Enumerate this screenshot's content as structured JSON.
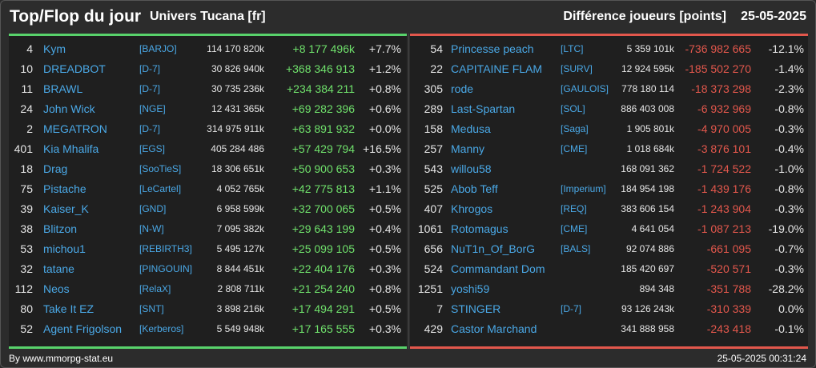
{
  "header": {
    "title": "Top/Flop du jour",
    "universe": "Univers Tucana [fr]",
    "metric": "Différence joueurs [points]",
    "date": "25-05-2025"
  },
  "colors": {
    "positive": "#6fe06b",
    "negative": "#e2574c",
    "link": "#4aa8e6"
  },
  "top": [
    {
      "rank": "4",
      "name": "Kym",
      "ally": "[BARJO]",
      "points": "114 170 820k",
      "delta": "+8 177 496k",
      "pct": "+7.7%"
    },
    {
      "rank": "10",
      "name": "DREADBOT",
      "ally": "[D-7]",
      "points": "30 826 940k",
      "delta": "+368 346 913",
      "pct": "+1.2%"
    },
    {
      "rank": "11",
      "name": "BRAWL",
      "ally": "[D-7]",
      "points": "30 735 236k",
      "delta": "+234 384 211",
      "pct": "+0.8%"
    },
    {
      "rank": "24",
      "name": "John Wick",
      "ally": "[NGE]",
      "points": "12 431 365k",
      "delta": "+69 282 396",
      "pct": "+0.6%"
    },
    {
      "rank": "2",
      "name": "MEGATRON",
      "ally": "[D-7]",
      "points": "314 975 911k",
      "delta": "+63 891 932",
      "pct": "+0.0%"
    },
    {
      "rank": "401",
      "name": "Kia Mhalifa",
      "ally": "[EGS]",
      "points": "405 284 486",
      "delta": "+57 429 794",
      "pct": "+16.5%"
    },
    {
      "rank": "18",
      "name": "Drag",
      "ally": "[SooTieS]",
      "points": "18 306 651k",
      "delta": "+50 900 653",
      "pct": "+0.3%"
    },
    {
      "rank": "75",
      "name": "Pistache",
      "ally": "[LeCartel]",
      "points": "4 052 765k",
      "delta": "+42 775 813",
      "pct": "+1.1%"
    },
    {
      "rank": "39",
      "name": "Kaiser_K",
      "ally": "[GND]",
      "points": "6 958 599k",
      "delta": "+32 700 065",
      "pct": "+0.5%"
    },
    {
      "rank": "38",
      "name": "Blitzon",
      "ally": "[N-W]",
      "points": "7 095 382k",
      "delta": "+29 643 199",
      "pct": "+0.4%"
    },
    {
      "rank": "53",
      "name": "michou1",
      "ally": "[REBIRTH3]",
      "points": "5 495 127k",
      "delta": "+25 099 105",
      "pct": "+0.5%"
    },
    {
      "rank": "32",
      "name": "tatane",
      "ally": "[PINGOUIN]",
      "points": "8 844 451k",
      "delta": "+22 404 176",
      "pct": "+0.3%"
    },
    {
      "rank": "112",
      "name": "Neos",
      "ally": "[RelaX]",
      "points": "2 808 711k",
      "delta": "+21 254 240",
      "pct": "+0.8%"
    },
    {
      "rank": "80",
      "name": "Take It EZ",
      "ally": "[SNT]",
      "points": "3 898 216k",
      "delta": "+17 494 291",
      "pct": "+0.5%"
    },
    {
      "rank": "52",
      "name": "Agent Frigolson",
      "ally": "[Kerberos]",
      "points": "5 549 948k",
      "delta": "+17 165 555",
      "pct": "+0.3%"
    }
  ],
  "flop": [
    {
      "rank": "54",
      "name": "Princesse peach",
      "ally": "[LTC]",
      "points": "5 359 101k",
      "delta": "-736 982 665",
      "pct": "-12.1%"
    },
    {
      "rank": "22",
      "name": "CAPITAINE FLAM",
      "ally": "[SURV]",
      "points": "12 924 595k",
      "delta": "-185 502 270",
      "pct": "-1.4%"
    },
    {
      "rank": "305",
      "name": "rode",
      "ally": "[GAULOIS]",
      "points": "778 180 114",
      "delta": "-18 373 298",
      "pct": "-2.3%"
    },
    {
      "rank": "289",
      "name": "Last-Spartan",
      "ally": "[SOL]",
      "points": "886 403 008",
      "delta": "-6 932 969",
      "pct": "-0.8%"
    },
    {
      "rank": "158",
      "name": "Medusa",
      "ally": "[Saga]",
      "points": "1 905 801k",
      "delta": "-4 970 005",
      "pct": "-0.3%"
    },
    {
      "rank": "257",
      "name": "Manny",
      "ally": "[CME]",
      "points": "1 018 684k",
      "delta": "-3 876 101",
      "pct": "-0.4%"
    },
    {
      "rank": "543",
      "name": "willou58",
      "ally": "",
      "points": "168 091 362",
      "delta": "-1 724 522",
      "pct": "-1.0%"
    },
    {
      "rank": "525",
      "name": "Abob Teff",
      "ally": "[Imperium]",
      "points": "184 954 198",
      "delta": "-1 439 176",
      "pct": "-0.8%"
    },
    {
      "rank": "407",
      "name": "Khrogos",
      "ally": "[REQ]",
      "points": "383 606 154",
      "delta": "-1 243 904",
      "pct": "-0.3%"
    },
    {
      "rank": "1061",
      "name": "Rotomagus",
      "ally": "[CME]",
      "points": "4 641 054",
      "delta": "-1 087 213",
      "pct": "-19.0%"
    },
    {
      "rank": "656",
      "name": "NuT1n_Of_BorG",
      "ally": "[BALS]",
      "points": "92 074 886",
      "delta": "-661 095",
      "pct": "-0.7%"
    },
    {
      "rank": "524",
      "name": "Commandant Dom",
      "ally": "",
      "points": "185 420 697",
      "delta": "-520 571",
      "pct": "-0.3%"
    },
    {
      "rank": "1251",
      "name": "yoshi59",
      "ally": "",
      "points": "894 348",
      "delta": "-351 788",
      "pct": "-28.2%"
    },
    {
      "rank": "7",
      "name": "STINGER",
      "ally": "[D-7]",
      "points": "93 126 243k",
      "delta": "-310 339",
      "pct": "0.0%"
    },
    {
      "rank": "429",
      "name": "Castor Marchand",
      "ally": "",
      "points": "341 888 958",
      "delta": "-243 418",
      "pct": "-0.1%"
    }
  ],
  "footer": {
    "source": "By www.mmorpg-stat.eu",
    "timestamp": "25-05-2025 00:31:24"
  }
}
